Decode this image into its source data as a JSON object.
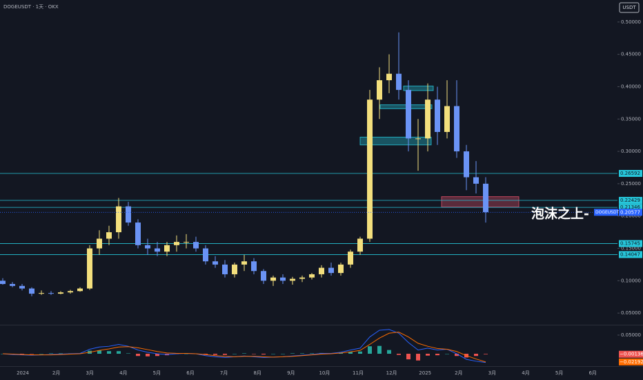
{
  "chart_data": {
    "type": "candlestick",
    "title": "DOGEUSDT · 1天 · OKX",
    "currency": "USDT",
    "annotation": "泡沫之上-",
    "up_color": "#f3df7d",
    "down_color": "#6a93f5",
    "open": [
      0.1,
      0.095,
      0.092,
      0.088,
      0.08,
      0.081,
      0.08,
      0.082,
      0.084,
      0.088,
      0.15,
      0.165,
      0.175,
      0.215,
      0.19,
      0.155,
      0.15,
      0.145,
      0.155,
      0.16,
      0.16,
      0.15,
      0.13,
      0.125,
      0.11,
      0.125,
      0.13,
      0.115,
      0.1,
      0.105,
      0.1,
      0.103,
      0.105,
      0.11,
      0.12,
      0.112,
      0.125,
      0.145,
      0.165,
      0.38,
      0.41,
      0.42,
      0.395,
      0.32,
      0.32,
      0.38,
      0.33,
      0.37,
      0.3,
      0.26,
      0.25
    ],
    "high": [
      0.104,
      0.098,
      0.095,
      0.09,
      0.085,
      0.084,
      0.084,
      0.086,
      0.09,
      0.155,
      0.178,
      0.185,
      0.228,
      0.222,
      0.195,
      0.165,
      0.16,
      0.16,
      0.17,
      0.172,
      0.168,
      0.155,
      0.138,
      0.132,
      0.128,
      0.14,
      0.135,
      0.118,
      0.108,
      0.11,
      0.106,
      0.108,
      0.112,
      0.124,
      0.128,
      0.128,
      0.148,
      0.168,
      0.395,
      0.43,
      0.45,
      0.484,
      0.41,
      0.35,
      0.405,
      0.4,
      0.41,
      0.41,
      0.31,
      0.285,
      0.26
    ],
    "low": [
      0.094,
      0.09,
      0.085,
      0.076,
      0.078,
      0.078,
      0.079,
      0.08,
      0.083,
      0.086,
      0.14,
      0.155,
      0.165,
      0.185,
      0.15,
      0.14,
      0.138,
      0.138,
      0.145,
      0.15,
      0.145,
      0.125,
      0.12,
      0.105,
      0.105,
      0.115,
      0.11,
      0.095,
      0.092,
      0.095,
      0.094,
      0.098,
      0.102,
      0.105,
      0.108,
      0.108,
      0.12,
      0.14,
      0.16,
      0.35,
      0.39,
      0.38,
      0.3,
      0.27,
      0.3,
      0.31,
      0.32,
      0.29,
      0.24,
      0.235,
      0.19
    ],
    "close": [
      0.095,
      0.092,
      0.088,
      0.08,
      0.081,
      0.08,
      0.082,
      0.084,
      0.088,
      0.15,
      0.165,
      0.175,
      0.215,
      0.19,
      0.155,
      0.15,
      0.145,
      0.155,
      0.16,
      0.16,
      0.15,
      0.13,
      0.125,
      0.11,
      0.125,
      0.13,
      0.115,
      0.1,
      0.105,
      0.1,
      0.103,
      0.105,
      0.11,
      0.12,
      0.112,
      0.125,
      0.145,
      0.165,
      0.38,
      0.41,
      0.42,
      0.395,
      0.32,
      0.32,
      0.38,
      0.33,
      0.37,
      0.3,
      0.26,
      0.25,
      0.206
    ],
    "ylim": [
      0.032,
      0.534
    ],
    "yticks": [
      {
        "value": 0.05,
        "label": "0.05000"
      },
      {
        "value": 0.1,
        "label": "0.10000"
      },
      {
        "value": 0.15,
        "label": "0.15000"
      },
      {
        "value": 0.2,
        "label": "0.20000"
      },
      {
        "value": 0.25,
        "label": "0.25000"
      },
      {
        "value": 0.3,
        "label": "0.30000"
      },
      {
        "value": 0.35,
        "label": "0.35000"
      },
      {
        "value": 0.4,
        "label": "0.40000"
      },
      {
        "value": 0.45,
        "label": "0.45000"
      },
      {
        "value": 0.5,
        "label": "0.50000"
      }
    ],
    "xticks": [
      "2024",
      "2月",
      "3月",
      "4月",
      "5月",
      "6月",
      "7月",
      "8月",
      "9月",
      "10月",
      "11月",
      "12月",
      "2025",
      "2月",
      "3月",
      "4月",
      "5月",
      "6月"
    ],
    "levels": [
      {
        "value": 0.26592,
        "color": "#26c6da"
      },
      {
        "value": 0.22429,
        "color": "#26c6da"
      },
      {
        "value": 0.21346,
        "color": "#26c6da"
      },
      {
        "value": 0.15745,
        "color": "#26c6da"
      },
      {
        "value": 0.14047,
        "color": "#26c6da"
      }
    ],
    "last_price": {
      "symbol": "DOGEUSDT",
      "value": 0.20577,
      "color": "#2962ff"
    },
    "zones": [
      {
        "low": 0.31,
        "high": 0.322,
        "color": "#26c6da"
      },
      {
        "low": 0.366,
        "high": 0.372,
        "color": "#26c6da"
      },
      {
        "low": 0.394,
        "high": 0.401,
        "color": "#26c6da"
      },
      {
        "low": 0.214,
        "high": 0.23,
        "color": "#e0506a"
      }
    ],
    "macd": {
      "ylim": [
        -0.0333,
        0.074
      ],
      "yticks": [
        {
          "value": 0.05,
          "label": "0.05000"
        }
      ],
      "series": [
        {
          "color": "#2962ff",
          "values": [
            0,
            -0.002,
            -0.003,
            -0.004,
            -0.003,
            -0.002,
            -0.001,
            0,
            0.001,
            0.012,
            0.018,
            0.02,
            0.025,
            0.02,
            0.01,
            0.004,
            0,
            -0.002,
            0,
            0.001,
            0,
            -0.005,
            -0.008,
            -0.01,
            -0.008,
            -0.006,
            -0.008,
            -0.01,
            -0.009,
            -0.008,
            -0.006,
            -0.004,
            -0.002,
            0.001,
            0.001,
            0.004,
            0.01,
            0.015,
            0.045,
            0.063,
            0.065,
            0.055,
            0.03,
            0.01,
            0.015,
            0.01,
            0.012,
            0,
            -0.015,
            -0.02,
            -0.02328
          ]
        },
        {
          "color": "#ff6d00",
          "values": [
            0,
            -0.001,
            -0.002,
            -0.003,
            -0.003,
            -0.003,
            -0.002,
            -0.001,
            0,
            0.004,
            0.009,
            0.013,
            0.018,
            0.019,
            0.016,
            0.011,
            0.006,
            0.002,
            0.001,
            0.001,
            0,
            -0.002,
            -0.005,
            -0.007,
            -0.008,
            -0.007,
            -0.007,
            -0.008,
            -0.009,
            -0.008,
            -0.007,
            -0.005,
            -0.003,
            -0.001,
            0,
            0.002,
            0.005,
            0.009,
            0.025,
            0.042,
            0.055,
            0.058,
            0.045,
            0.028,
            0.02,
            0.014,
            0.012,
            0.006,
            -0.005,
            -0.014,
            -0.02192
          ]
        }
      ],
      "histogram": [
        0,
        -0.001,
        -0.001,
        -0.001,
        0,
        0.001,
        0.001,
        0.001,
        0.001,
        0.008,
        0.009,
        0.007,
        0.007,
        0.001,
        -0.006,
        -0.007,
        -0.006,
        -0.004,
        -0.001,
        0,
        0,
        -0.003,
        -0.003,
        -0.003,
        0,
        0.001,
        -0.001,
        -0.002,
        0,
        0,
        0.001,
        0.001,
        0.001,
        0.002,
        0.001,
        0.002,
        0.005,
        0.006,
        0.02,
        0.021,
        0.01,
        -0.003,
        -0.015,
        -0.018,
        -0.005,
        -0.004,
        0,
        -0.006,
        -0.01,
        -0.006,
        -0.00136
      ],
      "hist_up_color": "#26a69a",
      "hist_down_color": "#ef5350",
      "markers": [
        {
          "value": -0.00136,
          "label": "−0.00136",
          "color": "#ef5350"
        },
        {
          "value": -0.02192,
          "label": "−0.02192",
          "color": "#ff6d00"
        }
      ]
    }
  }
}
